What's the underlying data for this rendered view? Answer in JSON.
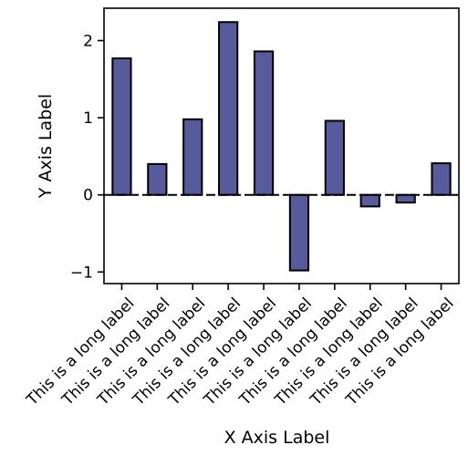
{
  "chart_data": {
    "type": "bar",
    "categories": [
      "This is a long label",
      "This is a long label",
      "This is a long label",
      "This is a long label",
      "This is a long label",
      "This is a long label",
      "This is a long label",
      "This is a long label",
      "This is a long label",
      "This is a long label"
    ],
    "values": [
      1.77,
      0.4,
      0.98,
      2.24,
      1.86,
      -0.98,
      0.96,
      -0.15,
      -0.1,
      0.41
    ],
    "xlabel": "X Axis Label",
    "ylabel": "Y Axis Label",
    "ylim": [
      -1.15,
      2.42
    ],
    "yticks": [
      -1,
      0,
      1,
      2
    ],
    "ytick_labels": [
      "−1",
      "0",
      "1",
      "2"
    ],
    "grid": false,
    "zero_line": "dashed",
    "bar_color": "#575a9b",
    "edge_color": "#000000"
  }
}
